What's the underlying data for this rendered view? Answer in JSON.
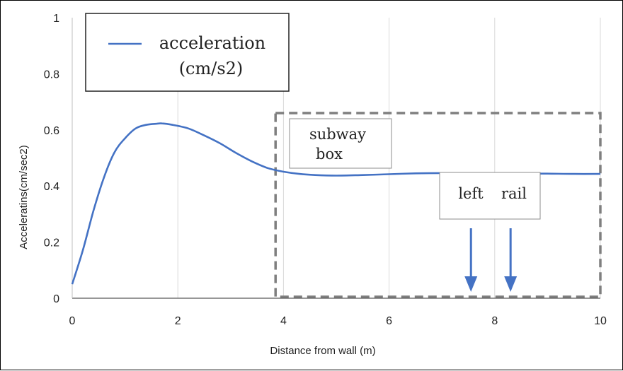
{
  "chart_data": {
    "type": "line",
    "xlabel": "Distance from wall (m)",
    "ylabel": "Acceleratins(cm/sec2)",
    "xlim": [
      0,
      10
    ],
    "ylim": [
      0,
      1
    ],
    "x_ticks": [
      "0",
      "2",
      "4",
      "6",
      "8",
      "10"
    ],
    "y_ticks": [
      "0",
      "0.2",
      "0.4",
      "0.6",
      "0.8",
      "1"
    ],
    "grid": "vertical",
    "legend": {
      "position": "top-left",
      "line1": "acceleration",
      "line2": "(cm/s2)"
    },
    "series": [
      {
        "name": "acceleration (cm/s2)",
        "color": "#4472c4",
        "x": [
          0.0,
          0.2,
          0.4,
          0.6,
          0.8,
          1.0,
          1.2,
          1.4,
          1.6,
          1.7,
          1.9,
          2.2,
          2.5,
          2.8,
          3.1,
          3.4,
          3.7,
          4.0,
          4.3,
          4.6,
          5.0,
          5.5,
          6.0,
          6.5,
          7.0,
          7.5,
          8.0,
          8.5,
          9.0,
          9.5,
          10.0
        ],
        "values": [
          0.05,
          0.17,
          0.31,
          0.43,
          0.52,
          0.57,
          0.605,
          0.618,
          0.622,
          0.623,
          0.618,
          0.605,
          0.58,
          0.552,
          0.518,
          0.488,
          0.464,
          0.451,
          0.443,
          0.439,
          0.437,
          0.439,
          0.442,
          0.445,
          0.446,
          0.446,
          0.445,
          0.444,
          0.444,
          0.443,
          0.443
        ]
      }
    ],
    "annotations": {
      "subway_box": {
        "line1": "subway",
        "line2": "box",
        "x_range": [
          3.85,
          10
        ],
        "y_range": [
          0,
          0.66
        ]
      },
      "left_rail": {
        "text1": "left",
        "text2": "rail",
        "arrow_x": [
          7.55,
          8.3
        ]
      }
    }
  }
}
